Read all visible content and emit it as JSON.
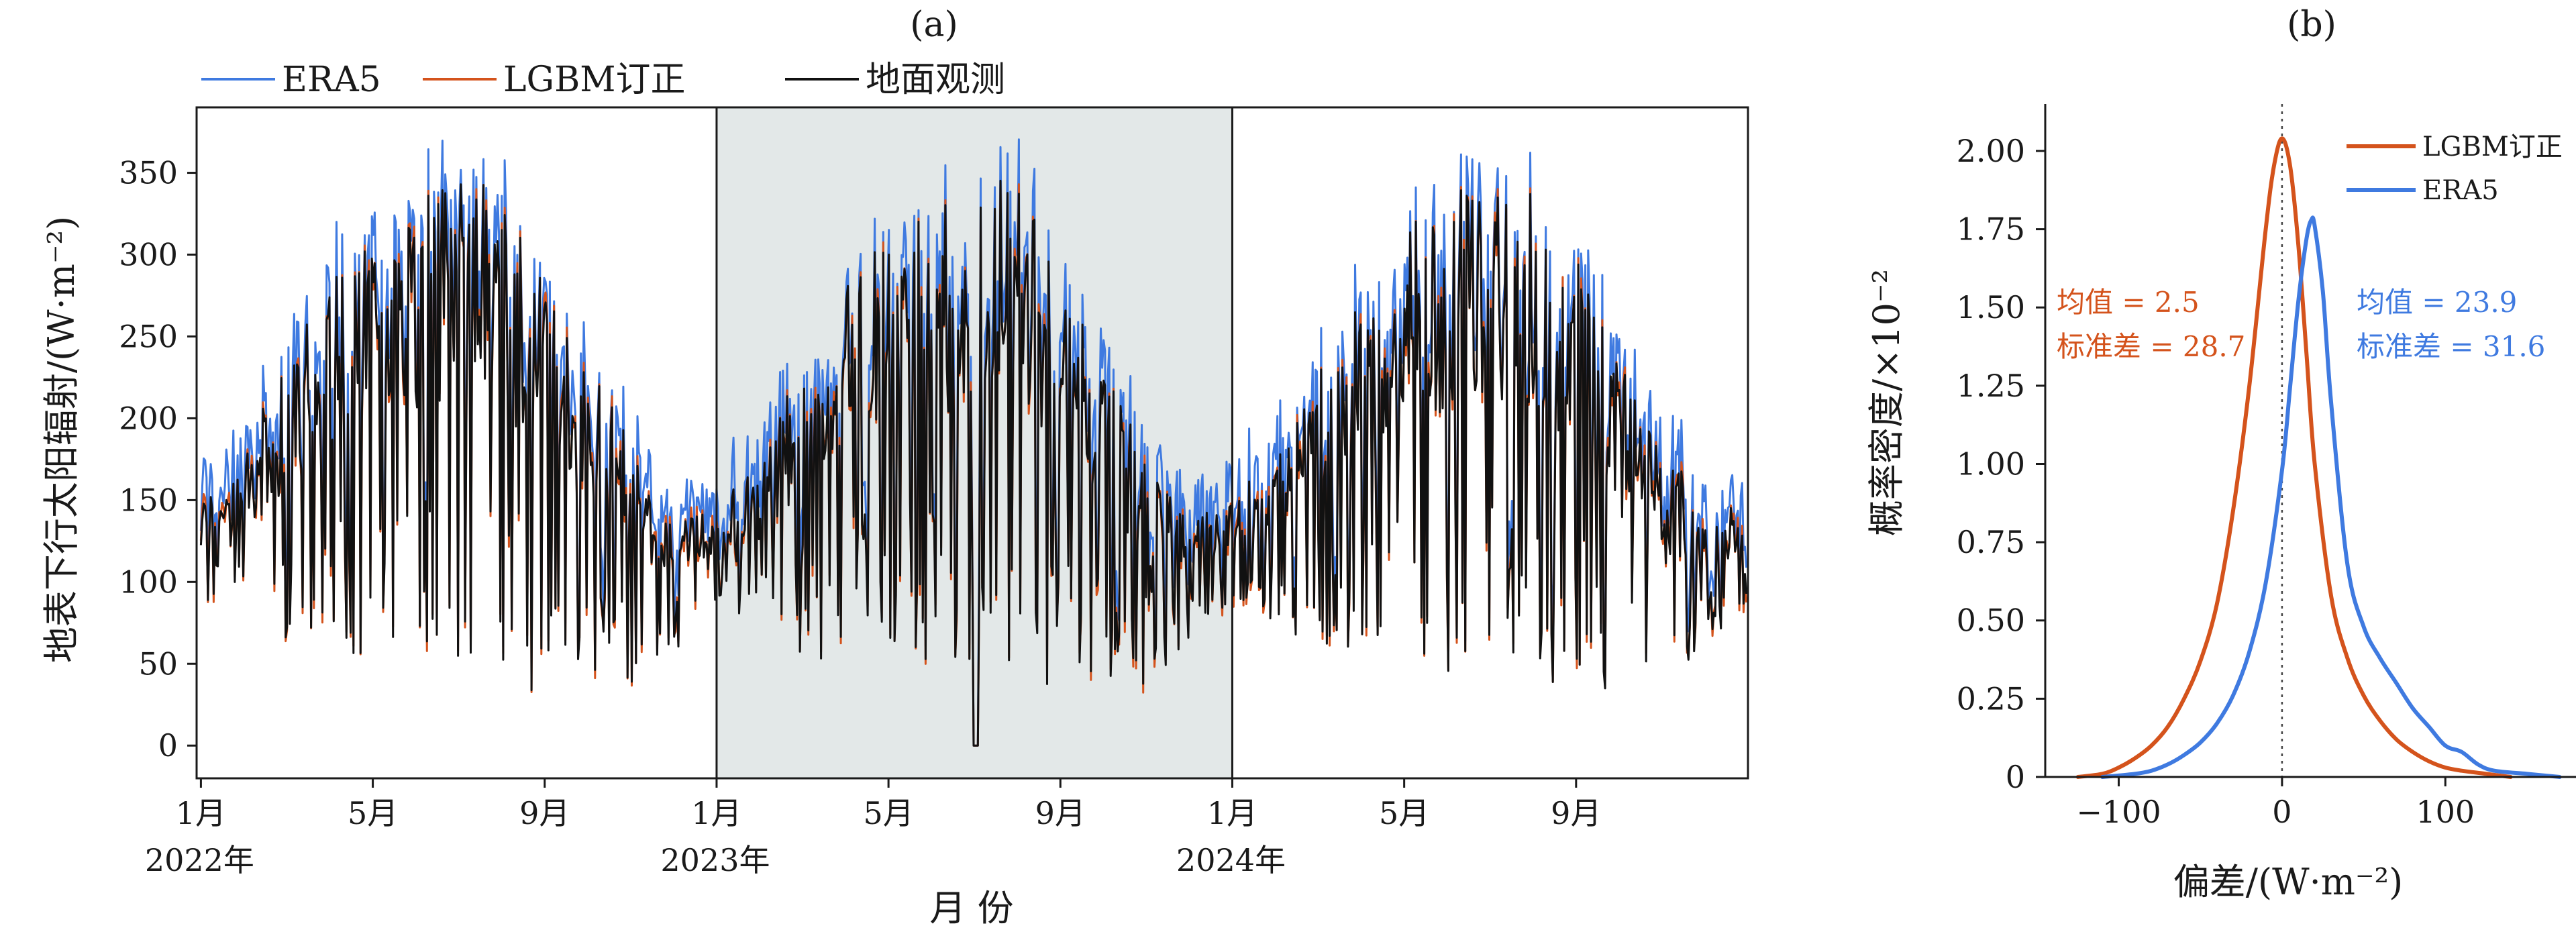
{
  "chart_data": [
    {
      "panel": "(a)",
      "type": "line",
      "xlabel": "月 份",
      "ylabel": "地表下行太阳辐射/(W·m⁻²)",
      "ylim": [
        -20,
        390
      ],
      "yticks": [
        0,
        50,
        100,
        150,
        200,
        250,
        300,
        350
      ],
      "xticks": [
        {
          "month": 0,
          "label": "1月",
          "year": "2022年"
        },
        {
          "month": 4,
          "label": "5月",
          "year": ""
        },
        {
          "month": 8,
          "label": "9月",
          "year": ""
        },
        {
          "month": 12,
          "label": "1月",
          "year": "2023年"
        },
        {
          "month": 16,
          "label": "5月",
          "year": ""
        },
        {
          "month": 20,
          "label": "9月",
          "year": ""
        },
        {
          "month": 24,
          "label": "1月",
          "year": "2024年"
        },
        {
          "month": 28,
          "label": "5月",
          "year": ""
        },
        {
          "month": 32,
          "label": "9月",
          "year": ""
        }
      ],
      "xlim_months": [
        -0.1,
        36
      ],
      "shaded_region_months": [
        12,
        24
      ],
      "shade_color": "#e3e8e8",
      "legend_position": "top-left-outside",
      "series": [
        {
          "name": "ERA5",
          "color": "#3f7ae0",
          "bias": 23.9,
          "spread": 31.6
        },
        {
          "name": "LGBM订正",
          "color": "#d4531c",
          "bias": 2.5,
          "spread": 28.7
        },
        {
          "name": "地面观测",
          "color": "#111111",
          "bias": 0,
          "spread": 0
        }
      ],
      "monthly_envelope": {
        "months": [
          0,
          1,
          2,
          3,
          4,
          5,
          6,
          7,
          8,
          9,
          10,
          11,
          12
        ],
        "clear_sky_max": [
          140,
          175,
          230,
          280,
          315,
          335,
          350,
          335,
          290,
          235,
          180,
          140,
          140
        ],
        "typical_min": [
          90,
          80,
          60,
          60,
          55,
          45,
          45,
          40,
          40,
          40,
          40,
          60,
          90
        ]
      }
    },
    {
      "panel": "(b)",
      "type": "line",
      "xlabel": "偏差/(W·m⁻²)",
      "ylabel": "概率密度/×10⁻²",
      "xlim": [
        -145,
        180
      ],
      "ylim": [
        0,
        2.15
      ],
      "xticks": [
        -100,
        0,
        100
      ],
      "yticks": [
        0,
        0.25,
        0.5,
        0.75,
        1.0,
        1.25,
        1.5,
        1.75,
        2.0
      ],
      "ytick_labels": [
        "0",
        "0.25",
        "0.50",
        "0.75",
        "1.00",
        "1.25",
        "1.50",
        "1.75",
        "2.00"
      ],
      "xtick_labels": [
        "−100",
        "0",
        "100"
      ],
      "vline_x": 0,
      "legend_position": "top-right",
      "series": [
        {
          "name": "LGBM订正",
          "color": "#d4531c",
          "x": [
            -125,
            -110,
            -100,
            -90,
            -80,
            -70,
            -60,
            -50,
            -40,
            -30,
            -20,
            -10,
            -5,
            0,
            5,
            10,
            15,
            20,
            30,
            40,
            50,
            60,
            70,
            80,
            90,
            100,
            110,
            125,
            140
          ],
          "y": [
            0.0,
            0.01,
            0.03,
            0.06,
            0.1,
            0.16,
            0.25,
            0.37,
            0.55,
            0.85,
            1.25,
            1.75,
            1.95,
            2.04,
            1.95,
            1.7,
            1.35,
            1.0,
            0.58,
            0.38,
            0.26,
            0.18,
            0.12,
            0.08,
            0.05,
            0.03,
            0.02,
            0.01,
            0.0
          ]
        },
        {
          "name": "ERA5",
          "color": "#3f7ae0",
          "x": [
            -110,
            -90,
            -80,
            -70,
            -60,
            -50,
            -40,
            -30,
            -20,
            -10,
            0,
            5,
            10,
            15,
            18,
            20,
            25,
            30,
            40,
            50,
            60,
            70,
            80,
            90,
            100,
            110,
            120,
            130,
            150,
            170
          ],
          "y": [
            0.0,
            0.01,
            0.02,
            0.04,
            0.07,
            0.11,
            0.17,
            0.26,
            0.4,
            0.62,
            0.98,
            1.25,
            1.52,
            1.72,
            1.78,
            1.76,
            1.55,
            1.2,
            0.68,
            0.48,
            0.38,
            0.3,
            0.22,
            0.16,
            0.1,
            0.08,
            0.04,
            0.02,
            0.01,
            0.0
          ]
        }
      ],
      "annotations": [
        {
          "series": "LGBM订正",
          "lines": [
            "均值 = 2.5",
            "标准差 = 28.7"
          ],
          "color": "#d4531c"
        },
        {
          "series": "ERA5",
          "lines": [
            "均值 = 23.9",
            "标准差 = 31.6"
          ],
          "color": "#3f7ae0"
        }
      ]
    }
  ]
}
